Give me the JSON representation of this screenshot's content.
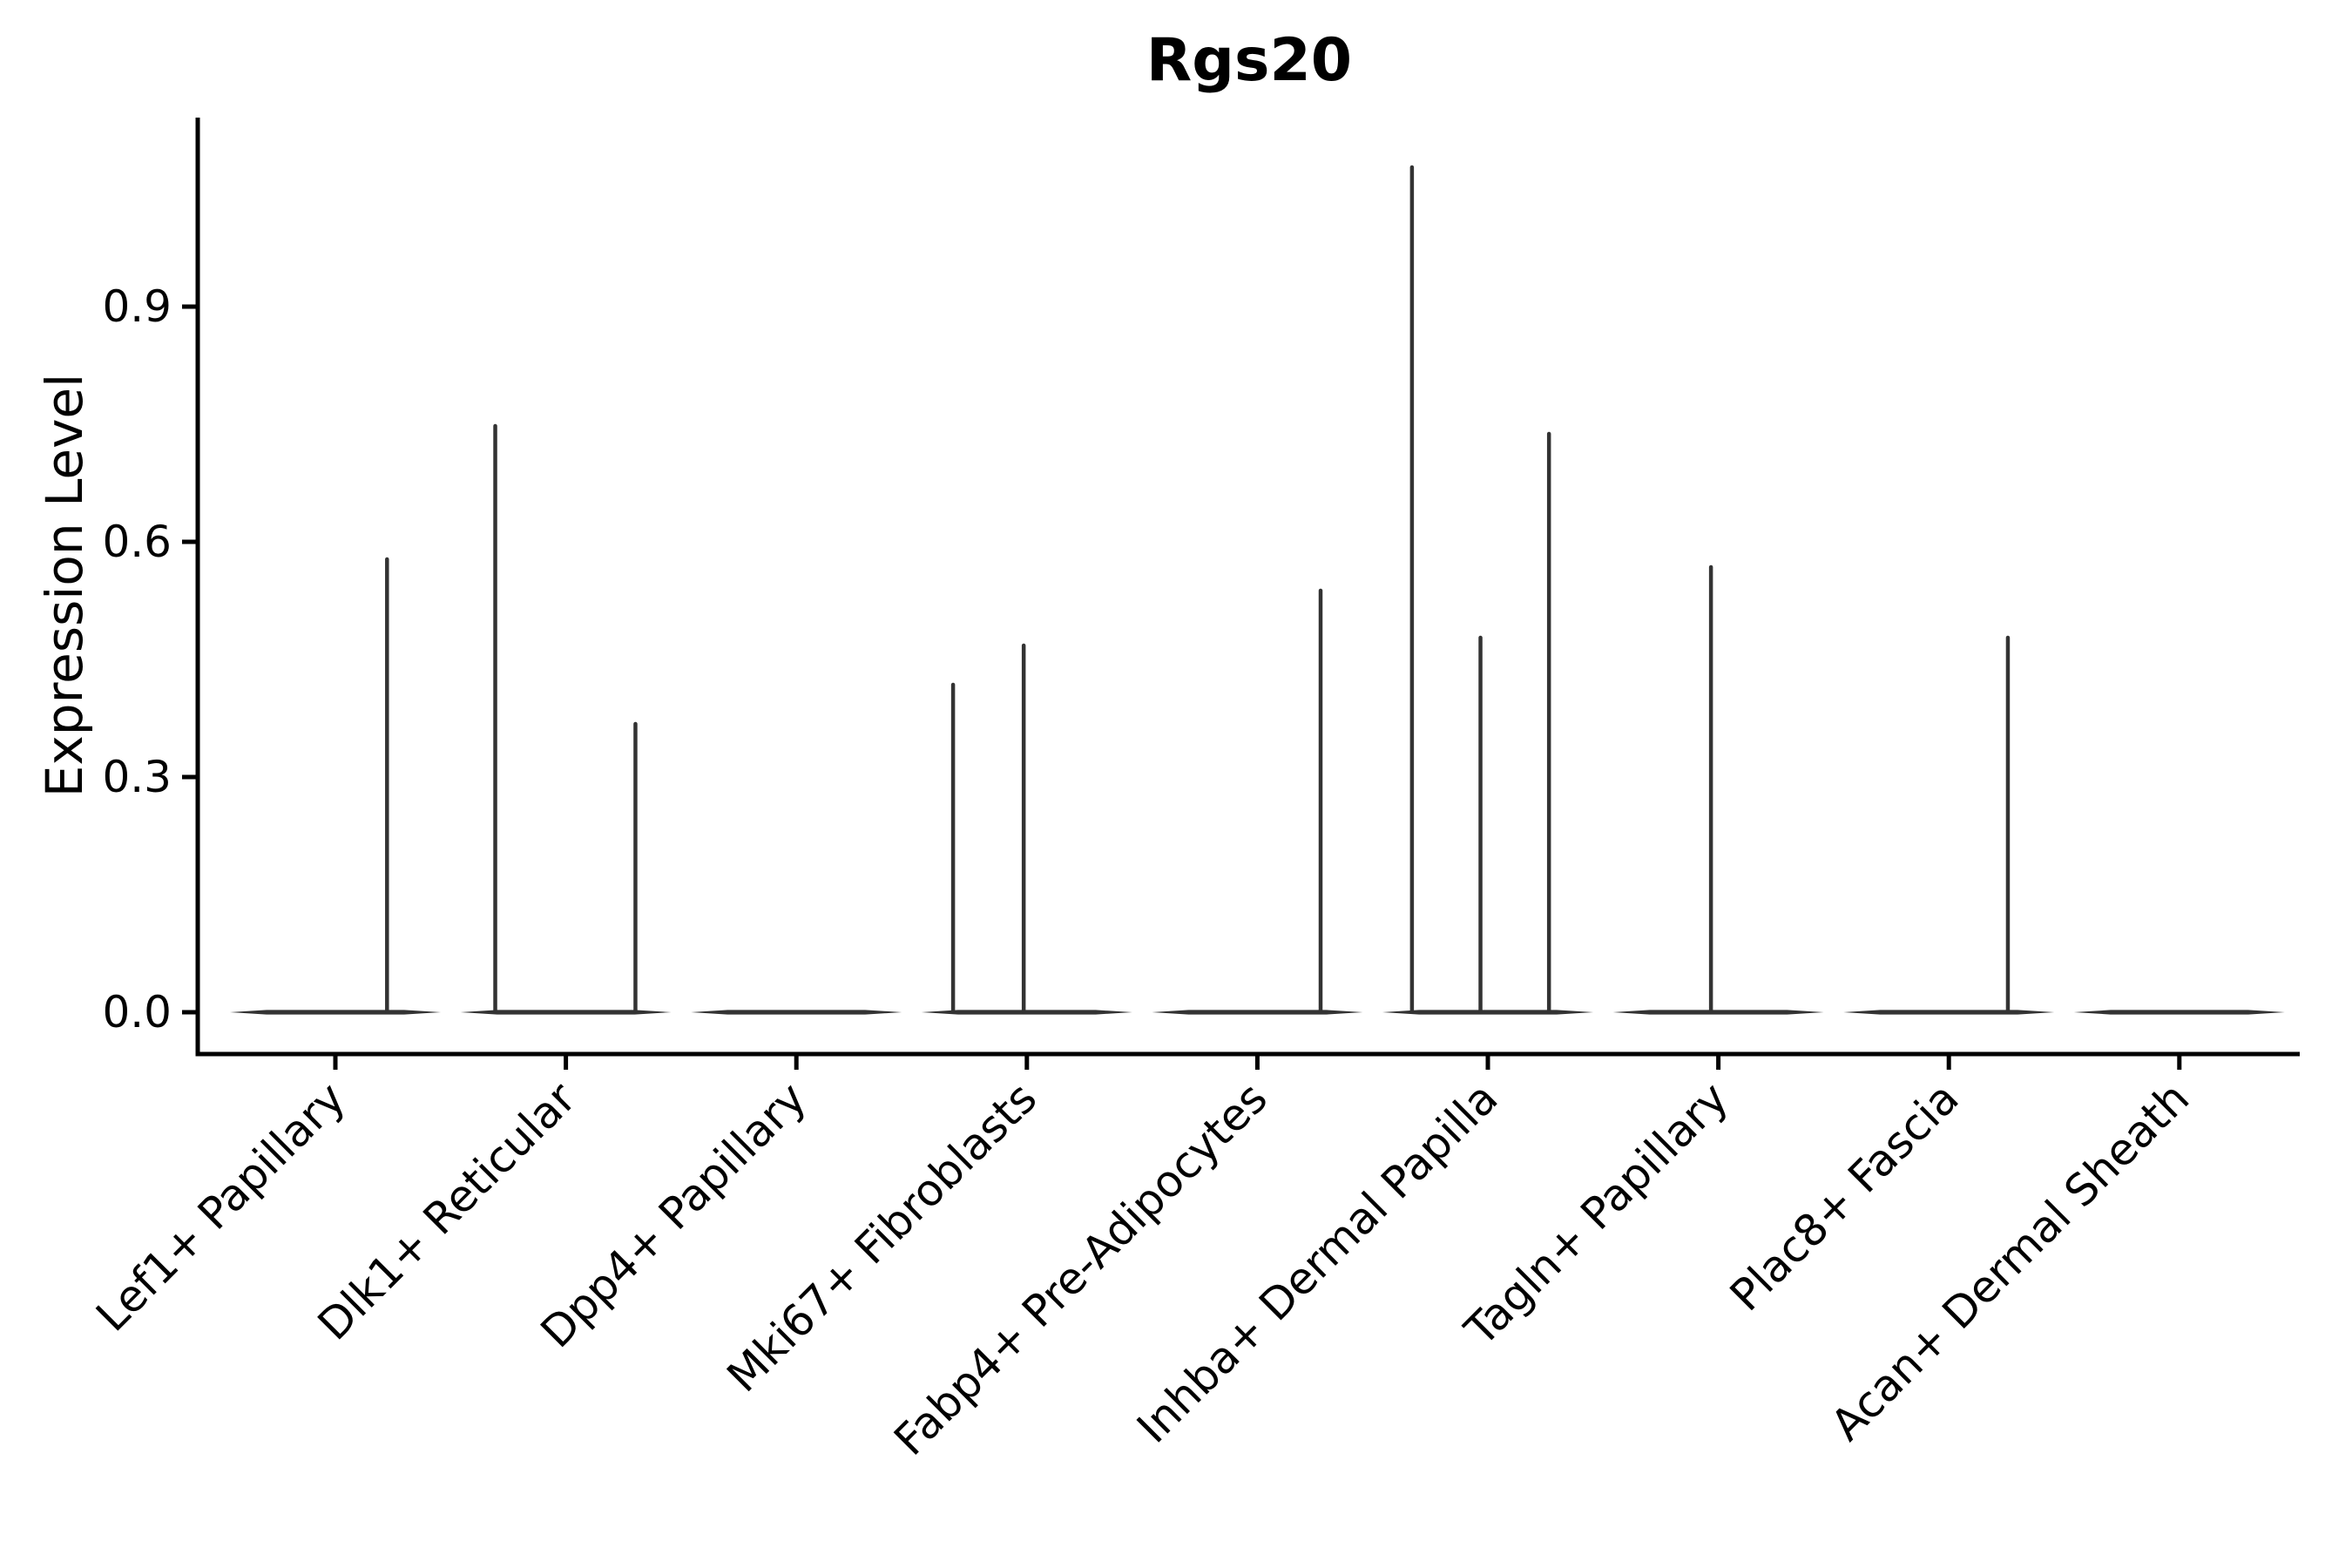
{
  "figure": {
    "title": "Rgs20",
    "ylabel": "Expression Level"
  },
  "chart_data": {
    "type": "violin",
    "title": "Rgs20",
    "xlabel": "",
    "ylabel": "Expression Level",
    "ylim": [
      -0.05,
      1.14
    ],
    "yticks": [
      0.0,
      0.3,
      0.6,
      0.9
    ],
    "ytick_labels": [
      "0.0",
      "0.3",
      "0.6",
      "0.9"
    ],
    "grid": false,
    "legend": "none",
    "categories": [
      "Lef1+ Papillary",
      "Dlk1+ Reticular",
      "Dpp4+ Papillary",
      "Mki67+ Fibroblasts",
      "Fabp4+ Pre-Adipocytes",
      "Inhba+ Dermal Papilla",
      "Tagln+ Papillary",
      "Plac8+ Fascia",
      "Acan+ Dermal Sheath"
    ],
    "series": [
      {
        "category": "Lef1+ Papillary",
        "baseline_value": 0.0,
        "spikes": [
          {
            "offset": 0.49,
            "value": 0.58
          }
        ]
      },
      {
        "category": "Dlk1+ Reticular",
        "baseline_value": 0.0,
        "spikes": [
          {
            "offset": -0.67,
            "value": 0.75
          },
          {
            "offset": 0.66,
            "value": 0.37
          }
        ]
      },
      {
        "category": "Dpp4+ Papillary",
        "baseline_value": 0.0,
        "spikes": []
      },
      {
        "category": "Mki67+ Fibroblasts",
        "baseline_value": 0.0,
        "spikes": [
          {
            "offset": -0.7,
            "value": 0.42
          },
          {
            "offset": -0.03,
            "value": 0.47
          }
        ]
      },
      {
        "category": "Fabp4+ Pre-Adipocytes",
        "baseline_value": 0.0,
        "spikes": [
          {
            "offset": 0.6,
            "value": 0.54
          }
        ]
      },
      {
        "category": "Inhba+ Dermal Papilla",
        "baseline_value": 0.0,
        "spikes": [
          {
            "offset": -0.72,
            "value": 1.08
          },
          {
            "offset": -0.07,
            "value": 0.48
          },
          {
            "offset": 0.58,
            "value": 0.74
          }
        ]
      },
      {
        "category": "Tagln+ Papillary",
        "baseline_value": 0.0,
        "spikes": [
          {
            "offset": -0.07,
            "value": 0.57
          }
        ]
      },
      {
        "category": "Plac8+ Fascia",
        "baseline_value": 0.0,
        "spikes": [
          {
            "offset": 0.56,
            "value": 0.48
          }
        ]
      },
      {
        "category": "Acan+ Dermal Sheath",
        "baseline_value": 0.0,
        "spikes": []
      }
    ],
    "colors": {
      "axis": "#000000",
      "violin_stroke": "#333333",
      "background": "#ffffff"
    }
  }
}
